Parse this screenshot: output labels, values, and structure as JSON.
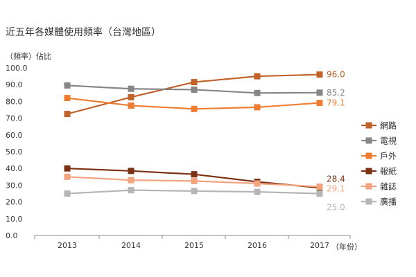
{
  "chart_data": {
    "type": "line",
    "title": "近五年各媒體使用頻率（台灣地區）",
    "ylabel": "（頻率）佔比",
    "xunit": "（年份）",
    "categories": [
      "2013",
      "2014",
      "2015",
      "2016",
      "2017"
    ],
    "ylim": [
      0,
      100
    ],
    "yticks": [
      "0.0",
      "10.0",
      "20.0",
      "30.0",
      "40.0",
      "50.0",
      "60.0",
      "70.0",
      "80.0",
      "90.0",
      "100.0"
    ],
    "grid": false,
    "legend_position": "right",
    "series": [
      {
        "name": "網路",
        "color": "#c0622a",
        "values": [
          72.5,
          82.5,
          91.5,
          95.0,
          96.0
        ],
        "end_label": "96.0"
      },
      {
        "name": "電視",
        "color": "#868686",
        "values": [
          89.5,
          87.5,
          87.0,
          85.0,
          85.2
        ],
        "end_label": "85.2"
      },
      {
        "name": "戶外",
        "color": "#ee7d31",
        "values": [
          82.0,
          77.5,
          75.5,
          76.5,
          79.1
        ],
        "end_label": "79.1"
      },
      {
        "name": "報紙",
        "color": "#7b3114",
        "values": [
          40.0,
          38.5,
          36.5,
          32.0,
          28.4
        ],
        "end_label": "28.4"
      },
      {
        "name": "雜誌",
        "color": "#f3a47e",
        "values": [
          35.0,
          33.0,
          32.5,
          31.0,
          29.1
        ],
        "end_label": "29.1"
      },
      {
        "name": "廣播",
        "color": "#b5b5b5",
        "values": [
          25.0,
          27.0,
          26.5,
          26.0,
          25.0
        ],
        "end_label": "25.0"
      }
    ]
  }
}
